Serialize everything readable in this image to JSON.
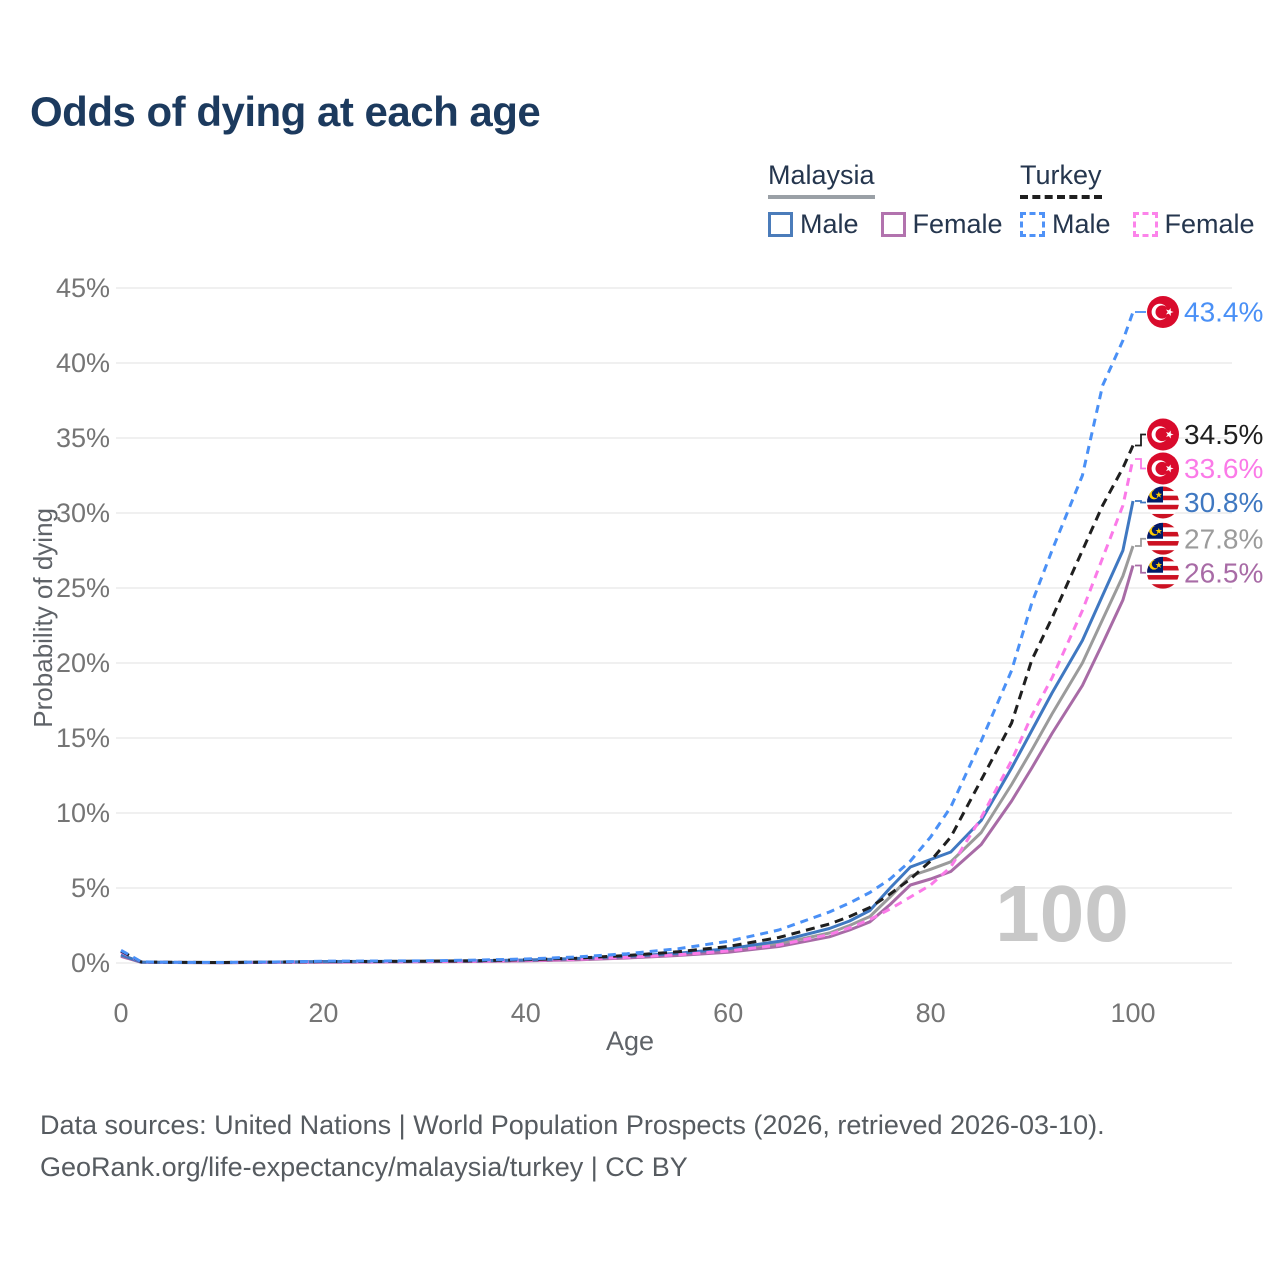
{
  "page": {
    "title": "Odds of dying at each age",
    "watermark": "100"
  },
  "legend": {
    "groups": [
      {
        "country": "Malaysia",
        "line_style": "solid",
        "underline_color": "#9aa0a6",
        "items": [
          {
            "label": "Male",
            "color": "#4b7cba",
            "dashed": false
          },
          {
            "label": "Female",
            "color": "#b273ae",
            "dashed": false
          }
        ]
      },
      {
        "country": "Turkey",
        "line_style": "dashed",
        "underline_color": "#1f1f1f",
        "items": [
          {
            "label": "Male",
            "color": "#4f92f7",
            "dashed": true
          },
          {
            "label": "Female",
            "color": "#fc83ea",
            "dashed": true
          }
        ]
      }
    ]
  },
  "chart_data": {
    "type": "line",
    "title": "Odds of dying at each age",
    "xlabel": "Age",
    "ylabel": "Probability of dying",
    "xlim": [
      0,
      100
    ],
    "ylim": [
      0,
      45
    ],
    "grid": "horizontal",
    "x_tick_values": [
      0,
      20,
      40,
      60,
      80,
      100
    ],
    "x_tick_labels": [
      "0",
      "20",
      "40",
      "60",
      "80",
      "100"
    ],
    "y_tick_values": [
      0,
      5,
      10,
      15,
      20,
      25,
      30,
      35,
      40,
      45
    ],
    "y_tick_labels": [
      "0%",
      "5%",
      "10%",
      "15%",
      "20%",
      "25%",
      "30%",
      "35%",
      "40%",
      "45%"
    ],
    "ages": [
      0,
      2,
      5,
      10,
      15,
      20,
      25,
      30,
      35,
      40,
      45,
      50,
      55,
      60,
      65,
      70,
      72,
      74,
      76,
      78,
      80,
      82,
      85,
      88,
      90,
      92,
      95,
      97,
      99,
      100
    ],
    "series": [
      {
        "name": "Malaysia",
        "country": "Malaysia",
        "sex": "total",
        "color": "#9b9b9b",
        "dashed": false,
        "flag": "malaysia-flag-icon",
        "end_value": 27.8,
        "end_label": "27.8%",
        "values": [
          0.5,
          0.055,
          0.035,
          0.025,
          0.05,
          0.08,
          0.09,
          0.1,
          0.13,
          0.17,
          0.26,
          0.39,
          0.58,
          0.84,
          1.28,
          2.0,
          2.5,
          3.1,
          4.4,
          5.8,
          6.25,
          6.75,
          8.7,
          11.9,
          14.2,
          16.6,
          20.0,
          22.9,
          25.8,
          27.8
        ]
      },
      {
        "name": "Malaysia Female",
        "country": "Malaysia",
        "sex": "female",
        "color": "#a86ba6",
        "dashed": false,
        "flag": "malaysia-flag-icon",
        "end_value": 26.5,
        "end_label": "26.5%",
        "values": [
          0.45,
          0.05,
          0.03,
          0.02,
          0.04,
          0.05,
          0.06,
          0.08,
          0.1,
          0.14,
          0.21,
          0.33,
          0.5,
          0.72,
          1.1,
          1.75,
          2.2,
          2.75,
          3.9,
          5.2,
          5.6,
          6.1,
          7.9,
          10.8,
          13.0,
          15.3,
          18.5,
          21.3,
          24.2,
          26.5
        ]
      },
      {
        "name": "Malaysia Male",
        "country": "Malaysia",
        "sex": "male",
        "color": "#3f78c1",
        "dashed": false,
        "flag": "malaysia-flag-icon",
        "end_value": 30.8,
        "end_label": "30.8%",
        "values": [
          0.55,
          0.06,
          0.04,
          0.03,
          0.06,
          0.1,
          0.11,
          0.12,
          0.15,
          0.2,
          0.3,
          0.45,
          0.65,
          0.95,
          1.45,
          2.3,
          2.8,
          3.5,
          5.0,
          6.4,
          6.9,
          7.4,
          9.5,
          13.0,
          15.5,
          18.0,
          21.5,
          24.5,
          27.5,
          30.8
        ]
      },
      {
        "name": "Turkey Female",
        "country": "Turkey",
        "sex": "female",
        "color": "#fb7ae8",
        "dashed": true,
        "flag": "turkey-flag-icon",
        "end_value": 33.6,
        "end_label": "33.6%",
        "values": [
          0.75,
          0.07,
          0.04,
          0.03,
          0.05,
          0.07,
          0.08,
          0.09,
          0.12,
          0.17,
          0.25,
          0.38,
          0.55,
          0.8,
          1.2,
          1.9,
          2.35,
          2.9,
          3.6,
          4.4,
          5.2,
          6.4,
          9.7,
          13.5,
          16.5,
          19.0,
          23.5,
          27.0,
          30.5,
          33.6
        ]
      },
      {
        "name": "Turkey",
        "country": "Turkey",
        "sex": "total",
        "color": "#1f1f1f",
        "dashed": true,
        "flag": "turkey-flag-icon",
        "end_value": 34.5,
        "end_label": "34.5%",
        "values": [
          0.8,
          0.075,
          0.045,
          0.035,
          0.06,
          0.09,
          0.1,
          0.12,
          0.15,
          0.22,
          0.32,
          0.5,
          0.75,
          1.1,
          1.7,
          2.6,
          3.1,
          3.7,
          4.6,
          5.6,
          6.8,
          8.4,
          12.2,
          16.0,
          20.2,
          23.0,
          27.5,
          30.5,
          33.0,
          34.5
        ]
      },
      {
        "name": "Turkey Male",
        "country": "Turkey",
        "sex": "male",
        "color": "#4a90f6",
        "dashed": true,
        "flag": "turkey-flag-icon",
        "end_value": 43.4,
        "end_label": "43.4%",
        "values": [
          0.85,
          0.08,
          0.05,
          0.04,
          0.07,
          0.12,
          0.13,
          0.15,
          0.19,
          0.27,
          0.4,
          0.62,
          0.95,
          1.45,
          2.2,
          3.4,
          4.0,
          4.7,
          5.6,
          6.8,
          8.4,
          10.4,
          14.8,
          19.5,
          24.0,
          27.5,
          32.5,
          38.5,
          41.5,
          43.4
        ]
      }
    ]
  },
  "footer": {
    "line1": "Data sources: United Nations | World Population Prospects (2026, retrieved 2026-03-10).",
    "line2": "GeoRank.org/life-expectancy/malaysia/turkey | CC BY"
  }
}
